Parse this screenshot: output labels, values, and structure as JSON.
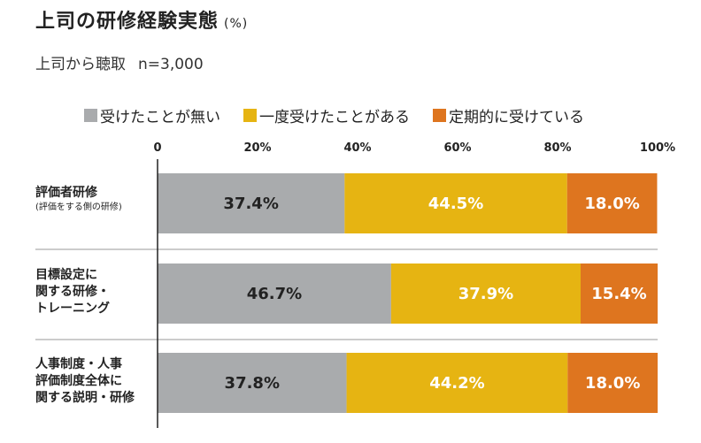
{
  "title": "上司の研修経験実態",
  "title_unit": "(%)",
  "subtitle": "上司から聴取",
  "sample": "n=3,000",
  "chart_data": {
    "type": "bar",
    "orientation": "horizontal",
    "stacked": true,
    "xlim": [
      0,
      100
    ],
    "ticks": [
      "0",
      "20%",
      "40%",
      "60%",
      "80%",
      "100%"
    ],
    "tick_values": [
      0,
      20,
      40,
      60,
      80,
      100
    ],
    "legend_position": "top",
    "categories": [
      {
        "lines": [
          "評価者研修"
        ],
        "note": "(評価をする側の研修)"
      },
      {
        "lines": [
          "目標設定に",
          "関する研修・",
          "トレーニング"
        ],
        "note": ""
      },
      {
        "lines": [
          "人事制度・人事",
          "評価制度全体に",
          "関する説明・研修"
        ],
        "note": ""
      }
    ],
    "series": [
      {
        "name": "受けたことが無い",
        "color": "#a9abad",
        "values": [
          37.4,
          46.7,
          37.8
        ],
        "labels": [
          "37.4%",
          "46.7%",
          "37.8%"
        ],
        "label_color": "#222222"
      },
      {
        "name": "一度受けたことがある",
        "color": "#e6b412",
        "values": [
          44.5,
          37.9,
          44.2
        ],
        "labels": [
          "44.5%",
          "37.9%",
          "44.2%"
        ],
        "label_color": "#ffffff"
      },
      {
        "name": "定期的に受けている",
        "color": "#de751f",
        "values": [
          18.0,
          15.4,
          18.0
        ],
        "labels": [
          "18.0%",
          "15.4%",
          "18.0%"
        ],
        "label_color": "#ffffff"
      }
    ]
  }
}
